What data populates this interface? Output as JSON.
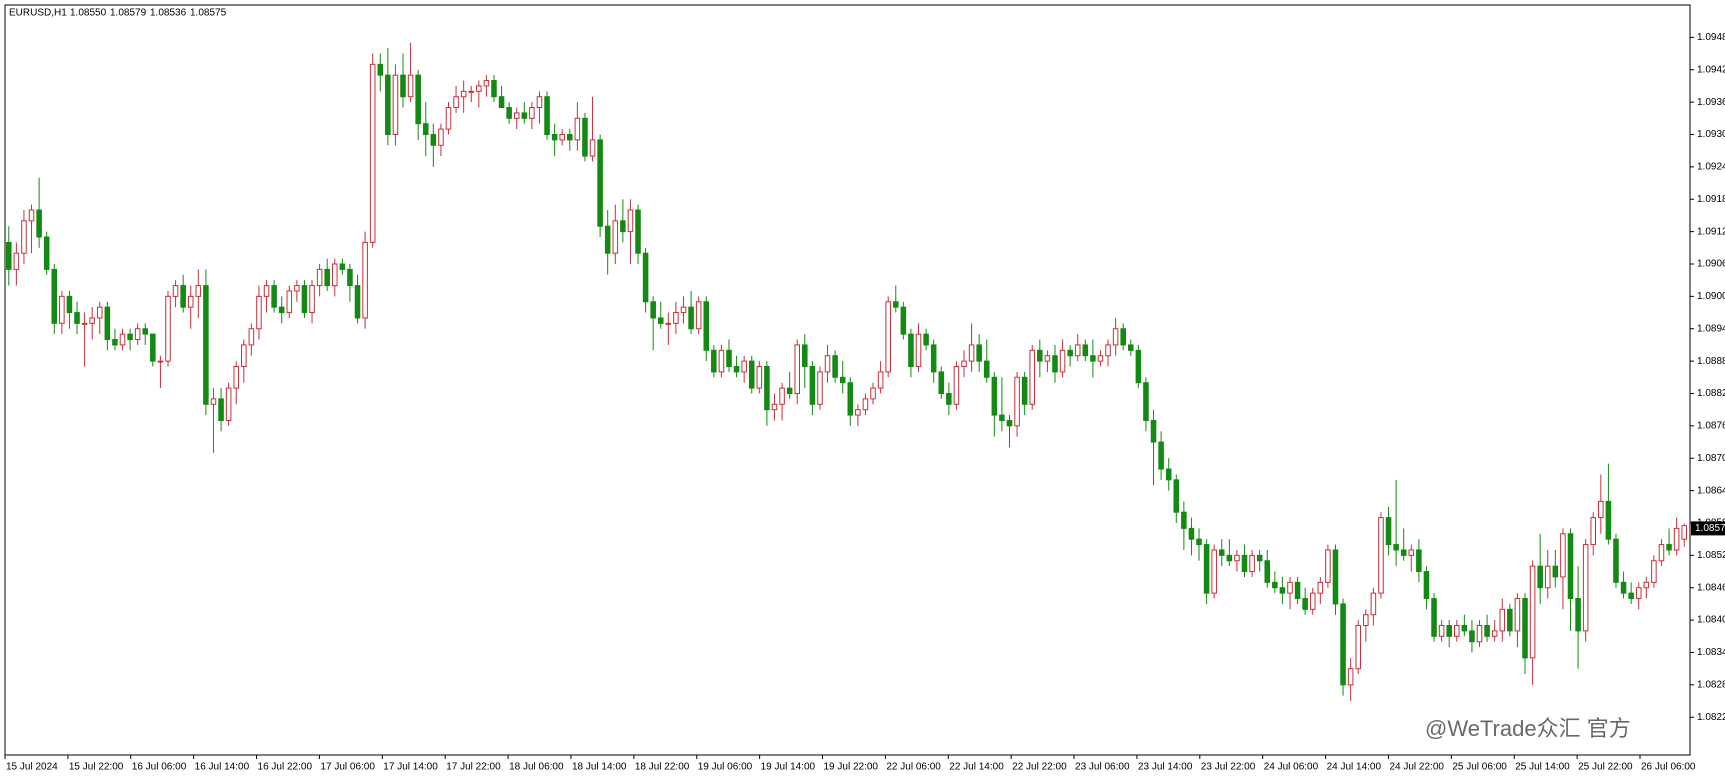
{
  "chart_data": {
    "type": "candlestick",
    "symbol": "EURUSD,H1",
    "header_ohlc": [
      {
        "value": 1.0855,
        "label": "1.08550"
      },
      1.08579,
      1.08536,
      1.08575
    ],
    "watermark": "@WeTrade众汇 官方",
    "up_color": "#c8303a",
    "down_color": "#138a13",
    "ylim": [
      1.0815,
      1.0954
    ],
    "yticks": [
      1.0948,
      1.0942,
      1.0936,
      {
        "value": 1.093,
        "label": "1.0930"
      },
      1.0924,
      1.0918,
      1.0912,
      1.0906,
      {
        "value": 1.09,
        "label": "1.0900"
      },
      1.0894,
      1.0888,
      1.0882,
      1.0876,
      {
        "value": 1.087,
        "label": "1.0870"
      },
      1.0864,
      1.0858,
      1.0852,
      1.0846,
      {
        "value": 1.084,
        "label": "1.0840"
      },
      1.0834,
      1.0828,
      1.0822
    ],
    "last_price": 1.0857,
    "x_labels": [
      "15 Jul 2024",
      "15 Jul 22:00",
      "16 Jul 06:00",
      "16 Jul 14:00",
      "16 Jul 22:00",
      "17 Jul 06:00",
      "17 Jul 14:00",
      "17 Jul 22:00",
      "18 Jul 06:00",
      "18 Jul 14:00",
      "18 Jul 22:00",
      "19 Jul 06:00",
      "19 Jul 14:00",
      "19 Jul 22:00",
      "22 Jul 06:00",
      "22 Jul 14:00",
      "22 Jul 22:00",
      "23 Jul 06:00",
      "23 Jul 14:00",
      "23 Jul 22:00",
      "24 Jul 06:00",
      "24 Jul 14:00",
      "24 Jul 22:00",
      "25 Jul 06:00",
      "25 Jul 14:00",
      "25 Jul 22:00",
      "26 Jul 06:00"
    ],
    "candles": [
      [
        1.091,
        1.0913,
        1.0902,
        1.0905
      ],
      [
        1.0905,
        1.091,
        1.0902,
        1.0908
      ],
      [
        1.0908,
        1.0916,
        1.0906,
        1.0914
      ],
      [
        1.0914,
        1.0917,
        1.0908,
        1.0916
      ],
      [
        1.0916,
        1.0922,
        1.0909,
        1.0911
      ],
      [
        1.0911,
        1.0912,
        1.0904,
        1.0905
      ],
      [
        1.0905,
        1.0906,
        1.0893,
        1.0895
      ],
      [
        1.0895,
        1.0901,
        1.0893,
        1.09
      ],
      [
        1.09,
        1.0901,
        1.0894,
        1.0897
      ],
      [
        1.0897,
        1.0899,
        1.0893,
        1.0895
      ],
      [
        1.0895,
        1.0897,
        1.0887,
        1.0895
      ],
      [
        1.0895,
        1.0898,
        1.0892,
        1.0896
      ],
      [
        1.0896,
        1.0899,
        1.0893,
        1.0898
      ],
      [
        1.0898,
        1.0899,
        1.089,
        1.0892
      ],
      [
        1.0892,
        1.0894,
        1.089,
        1.0891
      ],
      [
        1.0891,
        1.0894,
        1.089,
        1.0893
      ],
      [
        1.0893,
        1.0894,
        1.089,
        1.0892
      ],
      [
        1.0892,
        1.0895,
        1.0891,
        1.0894
      ],
      [
        1.0894,
        1.0895,
        1.0891,
        1.0893
      ],
      [
        1.0893,
        1.0893,
        1.0887,
        1.0888
      ],
      [
        1.0888,
        1.0889,
        1.0883,
        1.0888
      ],
      [
        1.0888,
        1.0901,
        1.0887,
        1.09
      ],
      [
        1.09,
        1.0903,
        1.0898,
        1.0902
      ],
      [
        1.0902,
        1.0904,
        1.0897,
        1.0898
      ],
      [
        1.0898,
        1.0902,
        1.0894,
        1.09
      ],
      [
        1.09,
        1.0905,
        1.0896,
        1.0902
      ],
      [
        1.0902,
        1.0905,
        1.0878,
        1.088
      ],
      [
        1.088,
        1.0883,
        1.0871,
        1.0881
      ],
      [
        1.0881,
        1.0883,
        1.0875,
        1.0877
      ],
      [
        1.0877,
        1.0884,
        1.0876,
        1.0883
      ],
      [
        1.0883,
        1.0888,
        1.088,
        1.0887
      ],
      [
        1.0887,
        1.0892,
        1.0884,
        1.0891
      ],
      [
        1.0891,
        1.0895,
        1.0889,
        1.0894
      ],
      [
        1.0894,
        1.0902,
        1.0892,
        1.09
      ],
      [
        1.09,
        1.0903,
        1.0897,
        1.0902
      ],
      [
        1.0902,
        1.0903,
        1.0897,
        1.0898
      ],
      [
        1.0898,
        1.09,
        1.0895,
        1.0897
      ],
      [
        1.0897,
        1.0902,
        1.0896,
        1.0901
      ],
      [
        1.0901,
        1.0903,
        1.0899,
        1.0902
      ],
      [
        1.0902,
        1.0903,
        1.0896,
        1.0897
      ],
      [
        1.0897,
        1.0903,
        1.0895,
        1.0902
      ],
      [
        1.0902,
        1.0906,
        1.09,
        1.0905
      ],
      [
        1.0905,
        1.0907,
        1.0901,
        1.0902
      ],
      [
        1.0902,
        1.0907,
        1.09,
        1.0906
      ],
      [
        1.0906,
        1.0907,
        1.0904,
        1.0905
      ],
      [
        1.0905,
        1.0906,
        1.0899,
        1.0902
      ],
      [
        1.0902,
        1.0904,
        1.0895,
        1.0896
      ],
      [
        1.0896,
        1.0912,
        1.0894,
        1.091
      ],
      [
        1.091,
        1.0945,
        1.0909,
        1.0943
      ],
      [
        1.0943,
        1.0945,
        1.0938,
        1.0941
      ],
      [
        1.0941,
        1.0946,
        1.0928,
        1.093
      ],
      [
        1.093,
        1.0943,
        1.0928,
        1.0941
      ],
      [
        1.0941,
        1.0945,
        1.0935,
        1.0937
      ],
      [
        1.0937,
        1.0947,
        1.0936,
        1.0941
      ],
      [
        1.0941,
        1.0942,
        1.0929,
        1.0932
      ],
      [
        1.0932,
        1.0936,
        1.0926,
        1.093
      ],
      [
        1.093,
        1.0932,
        1.0924,
        1.0928
      ],
      [
        1.0928,
        1.0932,
        1.0926,
        1.0931
      ],
      [
        1.0931,
        1.0936,
        1.093,
        1.0935
      ],
      [
        1.0935,
        1.0939,
        1.0934,
        1.0937
      ],
      [
        1.0937,
        1.094,
        1.0934,
        1.0938
      ],
      [
        1.0938,
        1.0939,
        1.0936,
        1.0938
      ],
      [
        1.0938,
        1.094,
        1.0935,
        1.0939
      ],
      [
        1.0939,
        1.0941,
        1.0937,
        1.094
      ],
      [
        1.094,
        1.0941,
        1.0936,
        1.0937
      ],
      [
        1.0937,
        1.0939,
        1.0935,
        1.0935
      ],
      [
        1.0935,
        1.0936,
        1.0932,
        1.0933
      ],
      [
        1.0933,
        1.0935,
        1.0931,
        1.0934
      ],
      [
        1.0934,
        1.0936,
        1.0932,
        1.0933
      ],
      [
        1.0933,
        1.0936,
        1.0931,
        1.0935
      ],
      [
        1.0935,
        1.0938,
        1.0932,
        1.0937
      ],
      [
        1.0937,
        1.0938,
        1.0929,
        1.093
      ],
      [
        1.093,
        1.0932,
        1.0926,
        1.0929
      ],
      [
        1.0929,
        1.0931,
        1.0928,
        1.093
      ],
      [
        1.093,
        1.0931,
        1.0927,
        1.0929
      ],
      [
        1.0929,
        1.0936,
        1.0927,
        1.0933
      ],
      [
        1.0933,
        1.0934,
        1.0925,
        1.0926
      ],
      [
        1.0926,
        1.0937,
        1.0925,
        1.0929
      ],
      [
        1.0929,
        1.093,
        1.0911,
        1.0913
      ],
      [
        1.0913,
        1.0916,
        1.0904,
        1.0908
      ],
      [
        1.0908,
        1.0917,
        1.0906,
        1.0914
      ],
      [
        1.0914,
        1.0918,
        1.091,
        1.0912
      ],
      [
        1.0912,
        1.0918,
        1.0906,
        1.0916
      ],
      [
        1.0916,
        1.0917,
        1.0906,
        1.0908
      ],
      [
        1.0908,
        1.0909,
        1.0897,
        1.0899
      ],
      [
        1.0899,
        1.09,
        1.089,
        1.0896
      ],
      [
        1.0896,
        1.0899,
        1.0894,
        1.0895
      ],
      [
        1.0895,
        1.0897,
        1.0891,
        1.0895
      ],
      [
        1.0895,
        1.0899,
        1.0893,
        1.0897
      ],
      [
        1.0897,
        1.09,
        1.0895,
        1.0898
      ],
      [
        1.0898,
        1.0901,
        1.0893,
        1.0894
      ],
      [
        1.0894,
        1.09,
        1.0893,
        1.0899
      ],
      [
        1.0899,
        1.09,
        1.0888,
        1.089
      ],
      [
        1.089,
        1.0891,
        1.0885,
        1.0886
      ],
      [
        1.0886,
        1.0891,
        1.0885,
        1.089
      ],
      [
        1.089,
        1.0892,
        1.0886,
        1.0887
      ],
      [
        1.0887,
        1.0889,
        1.0885,
        1.0886
      ],
      [
        1.0886,
        1.0889,
        1.0884,
        1.0888
      ],
      [
        1.0888,
        1.0889,
        1.0882,
        1.0883
      ],
      [
        1.0883,
        1.0888,
        1.0882,
        1.0887
      ],
      [
        1.0887,
        1.0888,
        1.0876,
        1.0879
      ],
      [
        1.0879,
        1.0882,
        1.0877,
        1.088
      ],
      [
        1.088,
        1.0884,
        1.0877,
        1.0883
      ],
      [
        1.0883,
        1.0886,
        1.0881,
        1.0882
      ],
      [
        1.0882,
        1.0892,
        1.088,
        1.0891
      ],
      [
        1.0891,
        1.0893,
        1.0883,
        1.0887
      ],
      [
        1.0887,
        1.0888,
        1.0878,
        1.088
      ],
      [
        1.088,
        1.0887,
        1.0879,
        1.0886
      ],
      [
        1.0886,
        1.0891,
        1.0884,
        1.0889
      ],
      [
        1.0889,
        1.089,
        1.0884,
        1.0885
      ],
      [
        1.0885,
        1.0888,
        1.0882,
        1.0884
      ],
      [
        1.0884,
        1.0885,
        1.0876,
        1.0878
      ],
      [
        1.0878,
        1.088,
        1.0876,
        1.0879
      ],
      [
        1.0879,
        1.0882,
        1.0878,
        1.0881
      ],
      [
        1.0881,
        1.0884,
        1.088,
        1.0883
      ],
      [
        1.0883,
        1.0888,
        1.0882,
        1.0886
      ],
      [
        1.0886,
        1.09,
        1.0885,
        1.0899
      ],
      [
        1.0899,
        1.0902,
        1.0897,
        1.0898
      ],
      [
        1.0898,
        1.0899,
        1.0892,
        1.0893
      ],
      [
        1.0893,
        1.0894,
        1.0885,
        1.0887
      ],
      [
        1.0887,
        1.0895,
        1.0886,
        1.0893
      ],
      [
        1.0893,
        1.0894,
        1.089,
        1.0891
      ],
      [
        1.0891,
        1.0892,
        1.0884,
        1.0886
      ],
      [
        1.0886,
        1.0887,
        1.0881,
        1.0882
      ],
      [
        1.0882,
        1.0884,
        1.0878,
        1.088
      ],
      [
        1.088,
        1.0888,
        1.0879,
        1.0887
      ],
      [
        1.0887,
        1.089,
        1.0885,
        1.0888
      ],
      [
        1.0888,
        1.0895,
        1.0886,
        1.0891
      ],
      [
        1.0891,
        1.0893,
        1.0886,
        1.0888
      ],
      [
        1.0888,
        1.0892,
        1.0884,
        1.0885
      ],
      [
        1.0885,
        1.0886,
        1.0874,
        1.0878
      ],
      [
        1.0878,
        1.0885,
        1.0875,
        1.0877
      ],
      [
        1.0877,
        1.0878,
        1.0872,
        1.0876
      ],
      [
        1.0876,
        1.0886,
        1.0874,
        1.0885
      ],
      [
        1.0885,
        1.0886,
        1.0878,
        1.088
      ],
      [
        1.088,
        1.0891,
        1.0879,
        1.089
      ],
      [
        1.089,
        1.0892,
        1.0885,
        1.0888
      ],
      [
        1.0888,
        1.089,
        1.0886,
        1.0889
      ],
      [
        1.0889,
        1.0891,
        1.0884,
        1.0886
      ],
      [
        1.0886,
        1.0892,
        1.0885,
        1.089
      ],
      [
        1.089,
        1.0891,
        1.0887,
        1.0889
      ],
      [
        1.0889,
        1.0893,
        1.0888,
        1.0891
      ],
      [
        1.0891,
        1.0892,
        1.0888,
        1.0889
      ],
      [
        1.0889,
        1.0892,
        1.0885,
        1.0888
      ],
      [
        1.0888,
        1.089,
        1.0887,
        1.0889
      ],
      [
        1.0889,
        1.0892,
        1.0887,
        1.0891
      ],
      [
        1.0891,
        1.0896,
        1.0889,
        1.0894
      ],
      [
        1.0894,
        1.0895,
        1.089,
        1.0891
      ],
      [
        1.0891,
        1.0892,
        1.0889,
        1.089
      ],
      [
        1.089,
        1.0891,
        1.0883,
        1.0884
      ],
      [
        1.0884,
        1.0885,
        1.0875,
        1.0877
      ],
      [
        1.0877,
        1.0879,
        1.0865,
        1.0873
      ],
      [
        1.0873,
        1.0875,
        1.0866,
        1.0868
      ],
      [
        1.0868,
        1.087,
        1.0864,
        1.0866
      ],
      [
        1.0866,
        1.0867,
        1.0858,
        1.086
      ],
      [
        1.086,
        1.0862,
        1.0853,
        1.0857
      ],
      [
        1.0857,
        1.0859,
        1.0852,
        1.0855
      ],
      [
        1.0855,
        1.0857,
        1.0851,
        1.0854
      ],
      [
        1.0854,
        1.0855,
        1.0843,
        1.0845
      ],
      [
        1.0845,
        1.0854,
        1.0844,
        1.0853
      ],
      [
        1.0853,
        1.0855,
        1.085,
        1.0852
      ],
      [
        1.0852,
        1.0855,
        1.085,
        1.0851
      ],
      [
        1.0851,
        1.0853,
        1.0849,
        1.0852
      ],
      [
        1.0852,
        1.0854,
        1.0848,
        1.0849
      ],
      [
        1.0849,
        1.0853,
        1.0848,
        1.0852
      ],
      [
        1.0852,
        1.0853,
        1.0849,
        1.0851
      ],
      [
        1.0851,
        1.0853,
        1.0846,
        1.0847
      ],
      [
        1.0847,
        1.0849,
        1.0845,
        1.0846
      ],
      [
        1.0846,
        1.0848,
        1.0843,
        1.0845
      ],
      [
        1.0845,
        1.0848,
        1.0842,
        1.0847
      ],
      [
        1.0847,
        1.0848,
        1.0843,
        1.0844
      ],
      [
        1.0844,
        1.0846,
        1.0841,
        1.0842
      ],
      [
        1.0842,
        1.0846,
        1.0841,
        1.0845
      ],
      [
        1.0845,
        1.0848,
        1.0843,
        1.0847
      ],
      [
        1.0847,
        1.0854,
        1.0846,
        1.0853
      ],
      [
        1.0853,
        1.0854,
        1.0841,
        1.0843
      ],
      [
        1.0843,
        1.0844,
        1.0826,
        1.0828
      ],
      [
        1.0828,
        1.0833,
        1.0825,
        1.0831
      ],
      [
        1.0831,
        1.084,
        1.083,
        1.0839
      ],
      [
        1.0839,
        1.0842,
        1.0836,
        1.0841
      ],
      [
        1.0841,
        1.0846,
        1.0839,
        1.0845
      ],
      [
        1.0845,
        1.086,
        1.0844,
        1.0859
      ],
      [
        1.0859,
        1.0861,
        1.0852,
        1.0854
      ],
      [
        1.0854,
        1.0866,
        1.085,
        1.0853
      ],
      [
        1.0853,
        1.0857,
        1.0851,
        1.0852
      ],
      [
        1.0852,
        1.0854,
        1.0849,
        1.0853
      ],
      [
        1.0853,
        1.0855,
        1.0847,
        1.0849
      ],
      [
        1.0849,
        1.085,
        1.0842,
        1.0844
      ],
      [
        1.0844,
        1.0845,
        1.0836,
        1.0837
      ],
      [
        1.0837,
        1.084,
        1.0836,
        1.0839
      ],
      [
        1.0839,
        1.084,
        1.0835,
        1.0837
      ],
      [
        1.0837,
        1.084,
        1.0836,
        1.0839
      ],
      [
        1.0839,
        1.0841,
        1.0837,
        1.0838
      ],
      [
        1.0838,
        1.084,
        1.0834,
        1.0836
      ],
      [
        1.0836,
        1.084,
        1.0835,
        1.0839
      ],
      [
        1.0839,
        1.0841,
        1.0836,
        1.0837
      ],
      [
        1.0837,
        1.084,
        1.0836,
        1.0838
      ],
      [
        1.0838,
        1.0844,
        1.0836,
        1.0842
      ],
      [
        1.0842,
        1.0843,
        1.0837,
        1.0838
      ],
      [
        1.0838,
        1.0845,
        1.0835,
        1.0844
      ],
      [
        1.0844,
        1.0845,
        1.083,
        1.0833
      ],
      [
        1.0833,
        1.0851,
        1.0828,
        1.085
      ],
      [
        1.085,
        1.0856,
        1.0843,
        1.0846
      ],
      [
        1.0846,
        1.0853,
        1.0844,
        1.085
      ],
      [
        1.085,
        1.0853,
        1.0846,
        1.0848
      ],
      [
        1.0848,
        1.0857,
        1.0842,
        1.0856
      ],
      [
        1.0856,
        1.0857,
        1.0838,
        1.0844
      ],
      [
        1.0844,
        1.085,
        1.0831,
        1.0838
      ],
      [
        1.0838,
        1.0855,
        1.0836,
        1.0854
      ],
      [
        1.0854,
        1.086,
        1.0852,
        1.0859
      ],
      [
        1.0859,
        1.0867,
        1.0856,
        1.0862
      ],
      [
        1.0862,
        1.0869,
        1.0854,
        1.0855
      ],
      [
        1.0855,
        1.0856,
        1.0846,
        1.0847
      ],
      [
        1.0847,
        1.0849,
        1.0844,
        1.0845
      ],
      [
        1.0845,
        1.0847,
        1.0843,
        1.0844
      ],
      [
        1.0844,
        1.0847,
        1.0842,
        1.0846
      ],
      [
        1.0846,
        1.0848,
        1.0844,
        1.0847
      ],
      [
        1.0847,
        1.0852,
        1.0846,
        1.0851
      ],
      [
        1.0851,
        1.0855,
        1.085,
        1.0854
      ],
      [
        1.0854,
        1.0857,
        1.0852,
        1.0853
      ],
      [
        1.0853,
        1.0859,
        1.0852,
        1.0857
      ],
      [
        1.0855,
        1.08579,
        1.08536,
        1.08575
      ]
    ]
  }
}
